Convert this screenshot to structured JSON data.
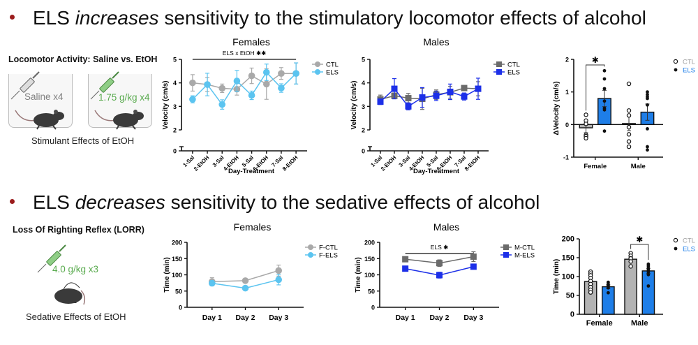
{
  "slide": {
    "headline1": {
      "pre": "ELS ",
      "em": "increases",
      "post": " sensitivity to the stimulatory locomotor effects of alcohol"
    },
    "headline2": {
      "pre": "ELS ",
      "em": "decreases",
      "post": " sensitivity to the sedative effects of alcohol"
    },
    "bullet_color": "#9b1c1c"
  },
  "locomotor_panel": {
    "title": "Locomotor Activity: Saline vs. EtOH",
    "saline_label": "Saline x4",
    "etoh_label": "1.75 g/kg x4",
    "caption": "Stimulant Effects of EtOH",
    "saline_color": "#808080",
    "etoh_color": "#5aab4f"
  },
  "lorr_panel": {
    "title": "Loss Of Righting Reflex (LORR)",
    "dose_label": "4.0 g/kg x3",
    "caption": "Sedative Effects of EtOH",
    "dose_color": "#5aab4f"
  },
  "chart_data": [
    {
      "id": "loco-females",
      "type": "line",
      "title": "Females",
      "annotation": "ELS x EtOH ✱✱",
      "xlabel": "Day-Treatment",
      "ylabel": "Velocity (cm/s)",
      "ylim": [
        2,
        5
      ],
      "yticks": [
        0,
        2,
        3,
        4,
        5
      ],
      "axis_break": true,
      "categories": [
        "1-Sal",
        "2-EtOH",
        "3-Sal",
        "4-EtOH",
        "5-Sal",
        "6-EtOH",
        "7-Sal",
        "8-EtOH"
      ],
      "legend": "top-right",
      "marker": "circle",
      "series": [
        {
          "name": "CTL",
          "color": "#a9a9a9",
          "values": [
            4.0,
            3.93,
            3.77,
            3.73,
            4.3,
            3.95,
            4.4,
            4.4
          ],
          "errors": [
            0.35,
            0.3,
            0.18,
            0.25,
            0.33,
            0.65,
            0.25,
            0.45
          ]
        },
        {
          "name": "ELS",
          "color": "#5bc4f0",
          "values": [
            3.3,
            3.93,
            3.08,
            4.08,
            3.47,
            4.45,
            3.78,
            4.4
          ],
          "errors": [
            0.15,
            0.48,
            0.2,
            0.45,
            0.18,
            0.35,
            0.18,
            0.45
          ]
        }
      ]
    },
    {
      "id": "loco-males",
      "type": "line",
      "title": "Males",
      "annotation": "",
      "xlabel": "Day-Treatment",
      "ylabel": "Velocity (cm/s)",
      "ylim": [
        2,
        5
      ],
      "yticks": [
        0,
        2,
        3,
        4,
        5
      ],
      "axis_break": true,
      "categories": [
        "1-Sal",
        "2-EtOH",
        "3-Sal",
        "4-EtOH",
        "5-Sal",
        "6-EtOH",
        "7-Sal",
        "8-EtOH"
      ],
      "legend": "top-right",
      "marker": "square",
      "series": [
        {
          "name": "CTL",
          "color": "#6b6b6b",
          "values": [
            3.3,
            3.45,
            3.35,
            3.32,
            3.5,
            3.6,
            3.78,
            3.75
          ],
          "errors": [
            0.18,
            0.12,
            0.2,
            0.45,
            0.2,
            0.25,
            0.1,
            0.3
          ]
        },
        {
          "name": "ELS",
          "color": "#1c2fe8",
          "values": [
            3.2,
            3.75,
            3.0,
            3.38,
            3.45,
            3.62,
            3.42,
            3.75
          ],
          "errors": [
            0.12,
            0.43,
            0.15,
            0.42,
            0.2,
            0.33,
            0.15,
            0.45
          ]
        }
      ]
    },
    {
      "id": "delta-velocity",
      "type": "bar",
      "title": "",
      "xlabel": "",
      "ylabel": "ΔVelocity (cm/s)",
      "ylim": [
        -1,
        2
      ],
      "yticks": [
        -1,
        0,
        1,
        2
      ],
      "categories": [
        "Female",
        "Male"
      ],
      "legend": "top-right",
      "significance": [
        {
          "group": "Female",
          "label": "✱"
        }
      ],
      "series": [
        {
          "name": "CTL",
          "color": "#b3b3b3",
          "legend_text_color": "#a0a0a0",
          "point_style": "open",
          "values": [
            -0.1,
            0.03
          ],
          "errors": [
            0.15,
            0.22
          ],
          "points": [
            [
              0.3,
              0.12,
              0.02,
              -0.32,
              -0.36,
              -0.42
            ],
            [
              1.25,
              0.43,
              0.28,
              -0.08,
              -0.3,
              -0.52,
              -0.68
            ]
          ]
        },
        {
          "name": "ELS",
          "color": "#1e7ee8",
          "legend_text_color": "#1e7ee8",
          "point_style": "filled",
          "values": [
            0.8,
            0.38
          ],
          "errors": [
            0.25,
            0.25
          ],
          "points": [
            [
              1.65,
              1.4,
              1.1,
              0.72,
              0.5,
              0.45,
              -0.2
            ],
            [
              1.0,
              0.92,
              0.85,
              0.8,
              0.6,
              -0.13,
              -0.68,
              -0.78
            ]
          ]
        }
      ]
    },
    {
      "id": "lorr-females",
      "type": "line",
      "title": "Females",
      "annotation": "",
      "xlabel": "",
      "ylabel": "Time (min)",
      "ylim": [
        0,
        200
      ],
      "yticks": [
        0,
        50,
        100,
        150,
        200
      ],
      "categories": [
        "Day 1",
        "Day 2",
        "Day 3"
      ],
      "legend": "top-right",
      "marker": "circle",
      "series": [
        {
          "name": "F-CTL",
          "color": "#a9a9a9",
          "values": [
            79,
            82,
            113
          ],
          "errors": [
            12,
            5,
            17
          ]
        },
        {
          "name": "F-ELS",
          "color": "#5bc4f0",
          "values": [
            74,
            59,
            85
          ],
          "errors": [
            8,
            5,
            16
          ]
        }
      ]
    },
    {
      "id": "lorr-males",
      "type": "line",
      "title": "Males",
      "annotation": "ELS ✱",
      "xlabel": "",
      "ylabel": "Time (min)",
      "ylim": [
        0,
        200
      ],
      "yticks": [
        0,
        50,
        100,
        150,
        200
      ],
      "categories": [
        "Day 1",
        "Day 2",
        "Day 3"
      ],
      "legend": "top-right",
      "marker": "square",
      "series": [
        {
          "name": "M-CTL",
          "color": "#6b6b6b",
          "values": [
            148,
            136,
            156
          ],
          "errors": [
            4,
            10,
            15
          ]
        },
        {
          "name": "M-ELS",
          "color": "#1c2fe8",
          "values": [
            119,
            99,
            125
          ],
          "errors": [
            6,
            9,
            7
          ]
        }
      ]
    },
    {
      "id": "lorr-bars",
      "type": "bar",
      "title": "",
      "xlabel": "",
      "ylabel": "Time (min)",
      "ylim": [
        0,
        200
      ],
      "yticks": [
        0,
        50,
        100,
        150,
        200
      ],
      "categories": [
        "Female",
        "Male"
      ],
      "legend": "top-right",
      "significance": [
        {
          "group": "Male",
          "label": "✱"
        }
      ],
      "series": [
        {
          "name": "CTL",
          "color": "#b3b3b3",
          "legend_text_color": "#a0a0a0",
          "point_style": "open",
          "values": [
            87,
            146
          ],
          "errors": [
            8,
            5
          ],
          "points": [
            [
              113,
              108,
              103,
              96,
              88,
              80,
              72,
              65,
              58
            ],
            [
              162,
              155,
              148,
              140,
              127
            ]
          ]
        },
        {
          "name": "ELS",
          "color": "#1e7ee8",
          "legend_text_color": "#1e7ee8",
          "point_style": "filled",
          "values": [
            73,
            115
          ],
          "errors": [
            5,
            7
          ],
          "points": [
            [
              85,
              80,
              76,
              70,
              57
            ],
            [
              133,
              128,
              122,
              118,
              112,
              105,
              75
            ]
          ]
        }
      ]
    }
  ]
}
